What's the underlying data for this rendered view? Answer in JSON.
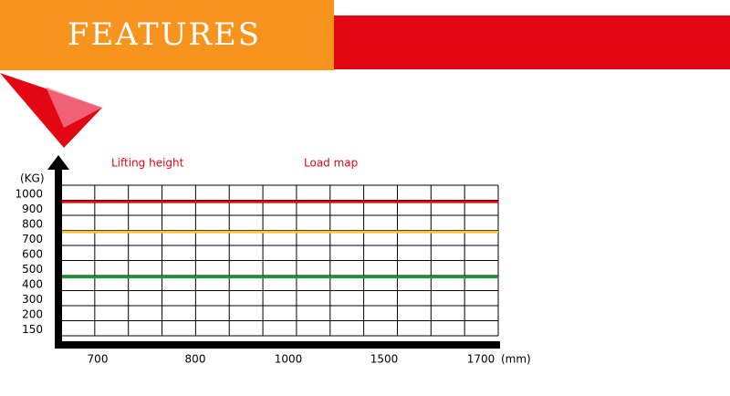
{
  "header": {
    "title": "FEATURES"
  },
  "chart_data": {
    "type": "line",
    "annotations": [
      "Lifting height",
      "Load map"
    ],
    "y_label": "(KG)",
    "x_label": "(mm)",
    "categories": [
      "700",
      "800",
      "1000",
      "1500",
      "1700"
    ],
    "yticks": [
      1000,
      900,
      800,
      700,
      600,
      500,
      400,
      300,
      200,
      150
    ],
    "series": [
      {
        "color": "#e30613",
        "values": [
          950,
          950,
          950,
          950,
          950
        ]
      },
      {
        "color": "#f5c242",
        "values": [
          750,
          750,
          750,
          750,
          750
        ]
      },
      {
        "color": "#1a9a3a",
        "values": [
          450,
          450,
          450,
          450,
          450
        ]
      }
    ],
    "grid": true
  }
}
